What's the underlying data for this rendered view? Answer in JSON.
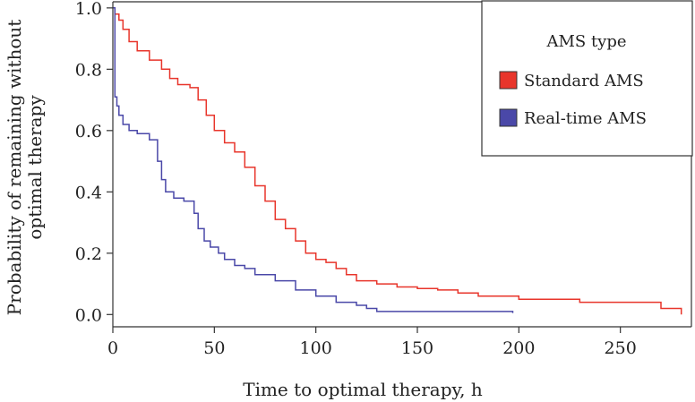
{
  "chart_data": {
    "type": "line",
    "subtype": "step",
    "title": "",
    "xlabel": "Time to optimal therapy, h",
    "ylabel_lines": [
      "Probability of remaining without",
      "optimal therapy"
    ],
    "xlim": [
      0,
      285
    ],
    "ylim": [
      -0.04,
      1.02
    ],
    "x_ticks": [
      0,
      50,
      100,
      150,
      200,
      250
    ],
    "y_ticks": [
      0.0,
      0.2,
      0.4,
      0.6,
      0.8,
      1.0
    ],
    "x_tick_labels": [
      "0",
      "50",
      "100",
      "150",
      "200",
      "250"
    ],
    "y_tick_labels": [
      "0.0",
      "0.2",
      "0.4",
      "0.6",
      "0.8",
      "1.0"
    ],
    "grid": false,
    "legend": {
      "title": "AMS type",
      "position": "top-right",
      "entries": [
        "Standard AMS",
        "Real-time AMS"
      ]
    },
    "series": [
      {
        "name": "Standard AMS",
        "color": "#e8352b",
        "x": [
          0,
          1,
          3,
          5,
          8,
          12,
          18,
          24,
          28,
          32,
          38,
          42,
          46,
          50,
          55,
          60,
          65,
          70,
          75,
          80,
          85,
          90,
          95,
          100,
          105,
          110,
          115,
          120,
          130,
          140,
          150,
          160,
          170,
          180,
          200,
          230,
          270,
          280
        ],
        "y": [
          1.0,
          0.98,
          0.96,
          0.93,
          0.89,
          0.86,
          0.83,
          0.8,
          0.77,
          0.75,
          0.74,
          0.7,
          0.65,
          0.6,
          0.56,
          0.53,
          0.48,
          0.42,
          0.37,
          0.31,
          0.28,
          0.24,
          0.2,
          0.18,
          0.17,
          0.15,
          0.13,
          0.11,
          0.1,
          0.09,
          0.085,
          0.08,
          0.07,
          0.06,
          0.05,
          0.04,
          0.02,
          0.0
        ]
      },
      {
        "name": "Real-time AMS",
        "color": "#4a48a8",
        "x": [
          0,
          1,
          2,
          3,
          5,
          8,
          12,
          18,
          22,
          24,
          26,
          30,
          35,
          40,
          42,
          45,
          48,
          52,
          55,
          60,
          65,
          70,
          80,
          90,
          100,
          110,
          120,
          125,
          130,
          150,
          197
        ],
        "y": [
          1.0,
          0.71,
          0.68,
          0.65,
          0.62,
          0.6,
          0.59,
          0.57,
          0.5,
          0.44,
          0.4,
          0.38,
          0.37,
          0.33,
          0.28,
          0.24,
          0.22,
          0.2,
          0.18,
          0.16,
          0.15,
          0.13,
          0.11,
          0.08,
          0.06,
          0.04,
          0.03,
          0.02,
          0.01,
          0.01,
          0.005
        ]
      }
    ]
  }
}
